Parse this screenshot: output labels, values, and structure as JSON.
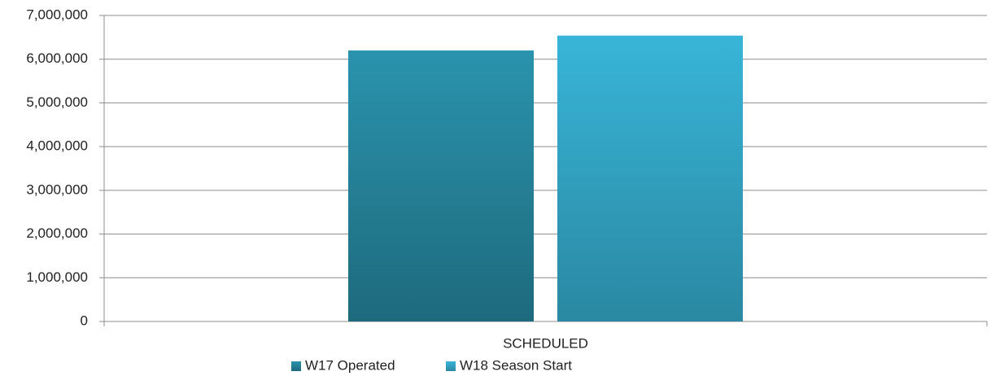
{
  "chart_data": {
    "type": "bar",
    "categories": [
      "SCHEDULED"
    ],
    "series": [
      {
        "name": "W17 Operated",
        "color": "#2a93ad",
        "values": [
          6200000
        ]
      },
      {
        "name": "W18 Season Start",
        "color": "#38b5d8",
        "values": [
          6540000
        ]
      }
    ],
    "ylim": [
      0,
      7000000
    ],
    "yticks": [
      0,
      {
        "value": 1000000,
        "label": "1,000,000"
      },
      {
        "value": 2000000,
        "label": "2,000,000"
      },
      {
        "value": 3000000,
        "label": "3,000,000"
      },
      {
        "value": 4000000,
        "label": "4,000,000"
      },
      {
        "value": 5000000,
        "label": "5,000,000"
      },
      {
        "value": 6000000,
        "label": "6,000,000"
      },
      {
        "value": 7000000,
        "label": "7,000,000"
      }
    ],
    "grid": true,
    "legend": "bottom"
  }
}
